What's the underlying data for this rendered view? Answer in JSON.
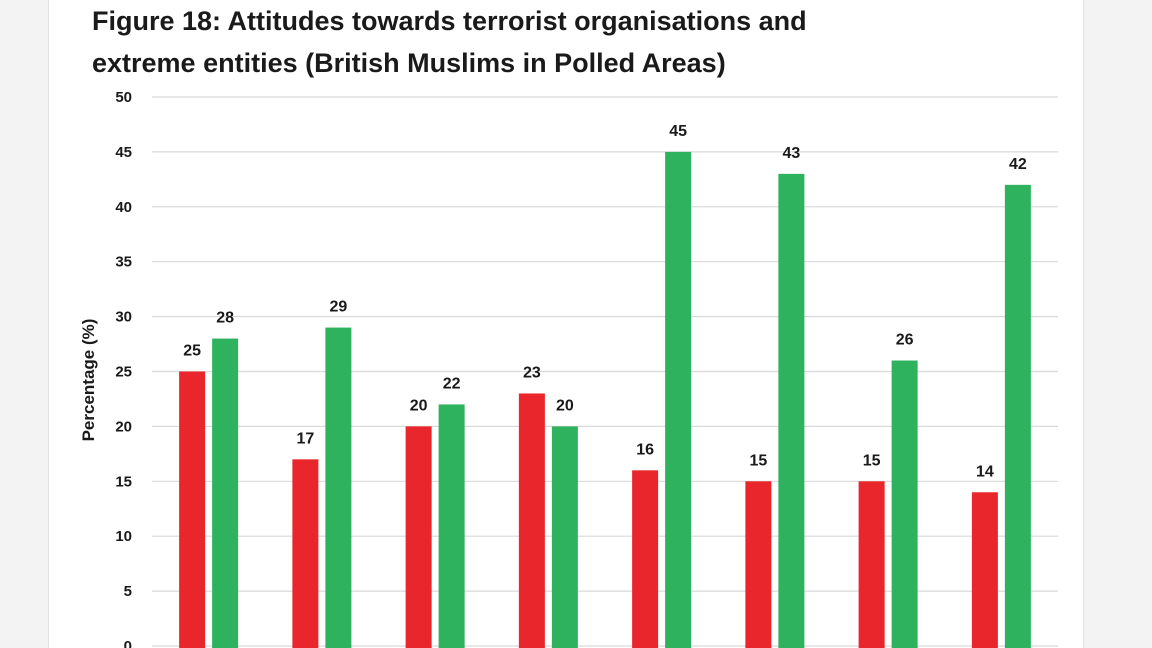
{
  "chart_data": {
    "type": "bar",
    "title_lines": [
      "Figure 18: Attitudes towards terrorist organisations and",
      "extreme entities (British Muslims in Polled Areas)"
    ],
    "ylabel": "Percentage (%)",
    "ylim": [
      0,
      50
    ],
    "yticks": [
      0,
      5,
      10,
      15,
      20,
      25,
      30,
      35,
      40,
      45,
      50
    ],
    "grid": true,
    "series": [
      {
        "color": "#e8262b",
        "values": [
          25,
          17,
          20,
          23,
          16,
          15,
          15,
          14
        ]
      },
      {
        "color": "#2fb25d",
        "values": [
          28,
          29,
          22,
          20,
          45,
          43,
          26,
          42
        ]
      }
    ]
  }
}
